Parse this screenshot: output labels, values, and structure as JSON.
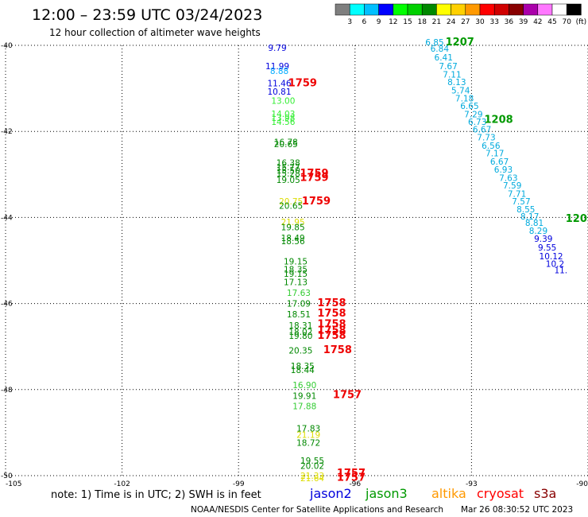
{
  "header": {
    "title": "12:00 – 23:59 UTC 03/24/2023",
    "subtitle": "12 hour collection of altimeter wave heights"
  },
  "colorbar": {
    "colors": [
      "#7f7f7f",
      "#00ffff",
      "#00bfff",
      "#0000ff",
      "#00ff00",
      "#00d000",
      "#008800",
      "#ffff00",
      "#ffd000",
      "#ff9900",
      "#ff0000",
      "#d00000",
      "#880000",
      "#aa00aa",
      "#ff77ff",
      "#ffffff",
      "#000000"
    ],
    "labels": [
      "3",
      "6",
      "9",
      "12",
      "15",
      "18",
      "21",
      "24",
      "27",
      "30",
      "33",
      "36",
      "39",
      "42",
      "45",
      "70",
      "(ft)"
    ]
  },
  "footer": {
    "note": "note: 1) Time is in UTC; 2) SWH is in feet",
    "satellites": [
      {
        "name": "jason2",
        "color": "#0000dd"
      },
      {
        "name": "jason3",
        "color": "#009900"
      },
      {
        "name": "altika",
        "color": "#ff9900"
      },
      {
        "name": "cryosat",
        "color": "#ff0000"
      },
      {
        "name": "s3a",
        "color": "#880000"
      }
    ],
    "credit": "NOAA/NESDIS Center for Satellite Applications and Research",
    "timestamp": "Mar 26 08:30:52 UTC 2023"
  },
  "chart_data": {
    "type": "scatter",
    "title": "12:00 – 23:59 UTC 03/24/2023",
    "xlabel": "",
    "ylabel": "",
    "xlim": [
      -105,
      -90
    ],
    "ylim": [
      -50,
      -40
    ],
    "x_ticks": [
      "-105",
      "-102",
      "-99",
      "-96",
      "-93",
      "-90"
    ],
    "y_ticks": [
      "-40",
      "-42",
      "-44",
      "-46",
      "-48",
      "-50"
    ],
    "grid": true,
    "wave_heights": [
      {
        "lon": -98.0,
        "lat": -40.13,
        "text": "9.79",
        "color": "#0000dd"
      },
      {
        "lon": -98.0,
        "lat": -40.55,
        "text": "11.99",
        "color": "#0000dd"
      },
      {
        "lon": -97.95,
        "lat": -40.67,
        "text": "8.88",
        "color": "#00aaff"
      },
      {
        "lon": -97.95,
        "lat": -40.95,
        "text": "11.46",
        "color": "#0000dd"
      },
      {
        "lon": -97.95,
        "lat": -41.15,
        "text": "10.81",
        "color": "#0000dd"
      },
      {
        "lon": -97.85,
        "lat": -41.36,
        "text": "13.00",
        "color": "#33ee33"
      },
      {
        "lon": -97.85,
        "lat": -41.66,
        "text": "14.03",
        "color": "#33ee33"
      },
      {
        "lon": -97.85,
        "lat": -41.76,
        "text": "13.98",
        "color": "#33ee33"
      },
      {
        "lon": -97.85,
        "lat": -41.85,
        "text": "14.56",
        "color": "#33ee33"
      },
      {
        "lon": -97.78,
        "lat": -42.32,
        "text": "16.78",
        "color": "#008800"
      },
      {
        "lon": -97.78,
        "lat": -42.37,
        "text": "20.65",
        "color": "#008800"
      },
      {
        "lon": -97.72,
        "lat": -42.8,
        "text": "16.38",
        "color": "#008800"
      },
      {
        "lon": -97.72,
        "lat": -42.9,
        "text": "15.77",
        "color": "#008800"
      },
      {
        "lon": -97.72,
        "lat": -42.98,
        "text": "15.50",
        "color": "#008800"
      },
      {
        "lon": -97.72,
        "lat": -43.05,
        "text": "15.28",
        "color": "#008800"
      },
      {
        "lon": -97.72,
        "lat": -43.2,
        "text": "19.05",
        "color": "#008800"
      },
      {
        "lon": -97.65,
        "lat": -43.7,
        "text": "20.75",
        "color": "#dddd00"
      },
      {
        "lon": -97.65,
        "lat": -43.8,
        "text": "20.65",
        "color": "#008800"
      },
      {
        "lon": -97.6,
        "lat": -44.18,
        "text": "21.95",
        "color": "#dddd00"
      },
      {
        "lon": -97.6,
        "lat": -44.3,
        "text": "19.85",
        "color": "#008800"
      },
      {
        "lon": -97.6,
        "lat": -44.55,
        "text": "18.49",
        "color": "#008800"
      },
      {
        "lon": -97.6,
        "lat": -44.62,
        "text": "18.56",
        "color": "#008800"
      },
      {
        "lon": -97.53,
        "lat": -45.09,
        "text": "19.15",
        "color": "#008800"
      },
      {
        "lon": -97.53,
        "lat": -45.28,
        "text": "18.35",
        "color": "#008800"
      },
      {
        "lon": -97.53,
        "lat": -45.38,
        "text": "19.15",
        "color": "#008800"
      },
      {
        "lon": -97.53,
        "lat": -45.57,
        "text": "17.13",
        "color": "#008800"
      },
      {
        "lon": -97.45,
        "lat": -45.82,
        "text": "17.63",
        "color": "#33cc33"
      },
      {
        "lon": -97.45,
        "lat": -46.07,
        "text": "17.09",
        "color": "#008800"
      },
      {
        "lon": -97.45,
        "lat": -46.32,
        "text": "18.51",
        "color": "#008800"
      },
      {
        "lon": -97.4,
        "lat": -46.58,
        "text": "18.31",
        "color": "#008800"
      },
      {
        "lon": -97.4,
        "lat": -46.73,
        "text": "18.02",
        "color": "#008800"
      },
      {
        "lon": -97.4,
        "lat": -46.82,
        "text": "19.80",
        "color": "#008800"
      },
      {
        "lon": -97.4,
        "lat": -47.16,
        "text": "20.35",
        "color": "#008800"
      },
      {
        "lon": -97.35,
        "lat": -47.52,
        "text": "18.35",
        "color": "#008800"
      },
      {
        "lon": -97.35,
        "lat": -47.62,
        "text": "18.44",
        "color": "#008800"
      },
      {
        "lon": -97.3,
        "lat": -47.97,
        "text": "16.90",
        "color": "#33cc33"
      },
      {
        "lon": -97.3,
        "lat": -48.22,
        "text": "19.91",
        "color": "#008800"
      },
      {
        "lon": -97.3,
        "lat": -48.46,
        "text": "17.88",
        "color": "#33cc33"
      },
      {
        "lon": -97.2,
        "lat": -48.97,
        "text": "17.83",
        "color": "#008800"
      },
      {
        "lon": -97.2,
        "lat": -49.12,
        "text": "21.19",
        "color": "#dddd00"
      },
      {
        "lon": -97.2,
        "lat": -49.31,
        "text": "18.72",
        "color": "#008800"
      },
      {
        "lon": -97.1,
        "lat": -49.72,
        "text": "19.55",
        "color": "#008800"
      },
      {
        "lon": -97.1,
        "lat": -49.84,
        "text": "20.02",
        "color": "#008800"
      },
      {
        "lon": -97.1,
        "lat": -50.07,
        "text": "21.33",
        "color": "#dddd00"
      },
      {
        "lon": -97.1,
        "lat": -50.13,
        "text": "21.64",
        "color": "#dddd00"
      },
      {
        "lon": -93.95,
        "lat": -40.0,
        "text": "6.85",
        "color": "#00aadd"
      },
      {
        "lon": -93.82,
        "lat": -40.15,
        "text": "6.84",
        "color": "#00aadd"
      },
      {
        "lon": -93.72,
        "lat": -40.35,
        "text": "6.41",
        "color": "#00aadd"
      },
      {
        "lon": -93.6,
        "lat": -40.55,
        "text": "7.67",
        "color": "#00aadd"
      },
      {
        "lon": -93.5,
        "lat": -40.75,
        "text": "7.11",
        "color": "#00aadd"
      },
      {
        "lon": -93.38,
        "lat": -40.92,
        "text": "8.13",
        "color": "#00aadd"
      },
      {
        "lon": -93.28,
        "lat": -41.12,
        "text": "5.74",
        "color": "#00aadd"
      },
      {
        "lon": -93.18,
        "lat": -41.3,
        "text": "7.18",
        "color": "#00aadd"
      },
      {
        "lon": -93.05,
        "lat": -41.48,
        "text": "6.65",
        "color": "#00aadd"
      },
      {
        "lon": -92.95,
        "lat": -41.67,
        "text": "7.29",
        "color": "#00aadd"
      },
      {
        "lon": -92.85,
        "lat": -41.85,
        "text": "6.73",
        "color": "#00aadd"
      },
      {
        "lon": -92.73,
        "lat": -42.02,
        "text": "6.67",
        "color": "#00aadd"
      },
      {
        "lon": -92.62,
        "lat": -42.21,
        "text": "7.73",
        "color": "#00aadd"
      },
      {
        "lon": -92.5,
        "lat": -42.4,
        "text": "6.56",
        "color": "#00aadd"
      },
      {
        "lon": -92.4,
        "lat": -42.58,
        "text": "7.17",
        "color": "#00aadd"
      },
      {
        "lon": -92.28,
        "lat": -42.77,
        "text": "6.67",
        "color": "#00aadd"
      },
      {
        "lon": -92.18,
        "lat": -42.96,
        "text": "6.93",
        "color": "#00aadd"
      },
      {
        "lon": -92.05,
        "lat": -43.15,
        "text": "7.63",
        "color": "#00aadd"
      },
      {
        "lon": -91.95,
        "lat": -43.33,
        "text": "7.59",
        "color": "#00aadd"
      },
      {
        "lon": -91.83,
        "lat": -43.52,
        "text": "7.71",
        "color": "#00aadd"
      },
      {
        "lon": -91.72,
        "lat": -43.7,
        "text": "7.57",
        "color": "#00aadd"
      },
      {
        "lon": -91.6,
        "lat": -43.88,
        "text": "8.55",
        "color": "#00aadd"
      },
      {
        "lon": -91.5,
        "lat": -44.05,
        "text": "8.17",
        "color": "#00aadd"
      },
      {
        "lon": -91.38,
        "lat": -44.2,
        "text": "8.81",
        "color": "#00aadd"
      },
      {
        "lon": -91.28,
        "lat": -44.38,
        "text": "8.29",
        "color": "#00aadd"
      },
      {
        "lon": -91.15,
        "lat": -44.57,
        "text": "9.39",
        "color": "#0000dd"
      },
      {
        "lon": -91.05,
        "lat": -44.77,
        "text": "9.55",
        "color": "#0000dd"
      },
      {
        "lon": -90.95,
        "lat": -44.97,
        "text": "10.12",
        "color": "#0000dd"
      },
      {
        "lon": -90.85,
        "lat": -45.15,
        "text": "10.2",
        "color": "#0000dd"
      },
      {
        "lon": -90.7,
        "lat": -45.3,
        "text": "11.",
        "color": "#0000dd"
      }
    ],
    "time_tags": [
      {
        "lon": -97.35,
        "lat": -40.95,
        "text": "1759",
        "color": "#ee0000"
      },
      {
        "lon": -97.05,
        "lat": -43.05,
        "text": "1759",
        "color": "#ee0000"
      },
      {
        "lon": -97.05,
        "lat": -43.15,
        "text": "1759",
        "color": "#ee0000"
      },
      {
        "lon": -97.0,
        "lat": -43.7,
        "text": "1759",
        "color": "#ee0000"
      },
      {
        "lon": -96.6,
        "lat": -46.06,
        "text": "1758",
        "color": "#ee0000"
      },
      {
        "lon": -96.6,
        "lat": -46.3,
        "text": "1758",
        "color": "#ee0000"
      },
      {
        "lon": -96.6,
        "lat": -46.55,
        "text": "1758",
        "color": "#ee0000"
      },
      {
        "lon": -96.6,
        "lat": -46.7,
        "text": "1758",
        "color": "#ee0000"
      },
      {
        "lon": -96.6,
        "lat": -46.82,
        "text": "1758",
        "color": "#ee0000"
      },
      {
        "lon": -96.45,
        "lat": -47.15,
        "text": "1758",
        "color": "#ee0000"
      },
      {
        "lon": -96.2,
        "lat": -48.2,
        "text": "1757",
        "color": "#ee0000"
      },
      {
        "lon": -96.1,
        "lat": -50.02,
        "text": "1757",
        "color": "#ee0000"
      },
      {
        "lon": -96.1,
        "lat": -50.12,
        "text": "1757",
        "color": "#ee0000"
      },
      {
        "lon": -93.3,
        "lat": -40.0,
        "text": "1207",
        "color": "#009900"
      },
      {
        "lon": -92.3,
        "lat": -41.8,
        "text": "1208",
        "color": "#009900"
      },
      {
        "lon": -90.3,
        "lat": -44.1,
        "text": "120",
        "color": "#009900"
      }
    ]
  }
}
